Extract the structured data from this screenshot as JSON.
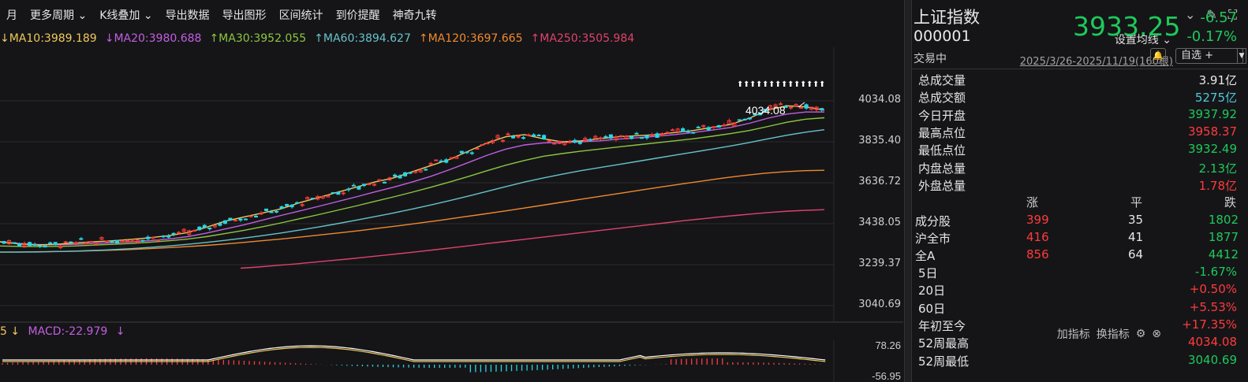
{
  "toolbar": {
    "items": [
      "月",
      "更多周期 ⌄",
      "K线叠加 ⌄",
      "导出数据",
      "导出图形",
      "区间统计",
      "到价提醒",
      "神奇九转"
    ]
  },
  "ma": {
    "ma10": {
      "label": "↓MA10:3989.189",
      "color": "#f0c95a"
    },
    "ma20": {
      "label": "↓MA20:3980.688",
      "color": "#c35fe0"
    },
    "ma30": {
      "label": "↑MA30:3952.055",
      "color": "#8ec63f"
    },
    "ma60": {
      "label": "↑MA60:3894.627",
      "color": "#66c3c9"
    },
    "ma120": {
      "label": "↑MA120:3697.665",
      "color": "#f08a2e"
    },
    "ma250": {
      "label": "↑MA250:3505.984",
      "color": "#e0426b"
    },
    "settings_label": "设置均线 ⌄"
  },
  "range_label": "2025/3/26-2025/11/19(160根)",
  "chart_data": {
    "type": "candlestick",
    "y_ticks": [
      "4034.08",
      "3835.40",
      "3636.72",
      "3438.05",
      "3239.37",
      "3040.69"
    ],
    "high_marker": "4034.08",
    "ma10_series": [
      3350,
      3340,
      3335,
      3338,
      3345,
      3350,
      3355,
      3362,
      3370,
      3380,
      3395,
      3420,
      3450,
      3470,
      3490,
      3510,
      3540,
      3565,
      3590,
      3615,
      3640,
      3660,
      3690,
      3720,
      3750,
      3790,
      3830,
      3860,
      3870,
      3850,
      3835,
      3840,
      3850,
      3860,
      3865,
      3870,
      3880,
      3890,
      3905,
      3920,
      3950,
      3990,
      4010,
      4005,
      3989
    ],
    "ma20_series": [
      3350,
      3342,
      3337,
      3336,
      3338,
      3342,
      3346,
      3350,
      3356,
      3364,
      3375,
      3392,
      3412,
      3432,
      3455,
      3478,
      3500,
      3522,
      3545,
      3568,
      3592,
      3615,
      3640,
      3668,
      3700,
      3735,
      3770,
      3800,
      3820,
      3830,
      3832,
      3835,
      3840,
      3848,
      3855,
      3862,
      3870,
      3880,
      3892,
      3905,
      3925,
      3950,
      3970,
      3980,
      3980
    ],
    "ma30_series": [
      3330,
      3328,
      3327,
      3328,
      3330,
      3334,
      3338,
      3342,
      3348,
      3355,
      3363,
      3375,
      3390,
      3405,
      3423,
      3442,
      3462,
      3482,
      3503,
      3524,
      3546,
      3568,
      3591,
      3615,
      3640,
      3667,
      3695,
      3722,
      3745,
      3765,
      3778,
      3790,
      3800,
      3810,
      3820,
      3830,
      3840,
      3850,
      3862,
      3875,
      3890,
      3910,
      3930,
      3945,
      3952
    ],
    "ma60_series": [
      3300,
      3300,
      3301,
      3303,
      3305,
      3308,
      3312,
      3317,
      3323,
      3330,
      3338,
      3347,
      3357,
      3368,
      3380,
      3393,
      3407,
      3422,
      3438,
      3455,
      3472,
      3490,
      3509,
      3529,
      3550,
      3572,
      3595,
      3618,
      3640,
      3660,
      3678,
      3695,
      3710,
      3725,
      3740,
      3755,
      3770,
      3785,
      3800,
      3815,
      3832,
      3850,
      3867,
      3882,
      3894
    ],
    "ma120_series": [
      3300,
      3301,
      3302,
      3303,
      3305,
      3308,
      3311,
      3315,
      3320,
      3325,
      3331,
      3338,
      3346,
      3355,
      3364,
      3374,
      3384,
      3395,
      3406,
      3418,
      3430,
      3443,
      3456,
      3470,
      3484,
      3498,
      3513,
      3528,
      3543,
      3558,
      3573,
      3588,
      3603,
      3618,
      3632,
      3646,
      3660,
      3672,
      3682,
      3690,
      3695,
      3697
    ],
    "ma250_series": [
      3222,
      3228,
      3235,
      3242,
      3250,
      3258,
      3266,
      3275,
      3284,
      3293,
      3302,
      3312,
      3322,
      3332,
      3342,
      3352,
      3362,
      3372,
      3382,
      3392,
      3402,
      3412,
      3422,
      3432,
      3442,
      3452,
      3461,
      3470,
      3478,
      3486,
      3493,
      3499,
      3503,
      3506
    ],
    "macd_ticks": [
      "78.26",
      "-56.95"
    ]
  },
  "macd": {
    "value_label": "MACD:-22.979",
    "prefix": "5 ↓",
    "suffix": "↓",
    "add_label": "加指标",
    "switch_label": "换指标"
  },
  "quote": {
    "name": "上证指数",
    "code": "000001",
    "status": "交易中",
    "price": "3933.25",
    "change": "-6.57",
    "change_pct": "-0.17%",
    "watch_label": "自选 +"
  },
  "stats": [
    {
      "label": "总成交量",
      "value": "3.91亿",
      "color": "#e6e6e6"
    },
    {
      "label": "总成交额",
      "value": "5275亿",
      "color": "#4ec9d8"
    },
    {
      "label": "今日开盘",
      "value": "3937.92",
      "color": "#1ec95a"
    },
    {
      "label": "最高点位",
      "value": "3958.37",
      "color": "#ff3b3b"
    },
    {
      "label": "最低点位",
      "value": "3932.49",
      "color": "#1ec95a"
    },
    {
      "label": "内盘总量",
      "value": "2.13亿",
      "color": "#1ec95a"
    },
    {
      "label": "外盘总量",
      "value": "1.78亿",
      "color": "#ff3b3b"
    }
  ],
  "breadth": {
    "headers": [
      "涨",
      "平",
      "跌"
    ],
    "rows": [
      {
        "label": "成分股",
        "up": "399",
        "flat": "35",
        "down": "1802"
      },
      {
        "label": "沪全市",
        "up": "416",
        "flat": "41",
        "down": "1877"
      },
      {
        "label": "全A",
        "up": "856",
        "flat": "64",
        "down": "4412"
      }
    ]
  },
  "performance": [
    {
      "label": "5日",
      "value": "-1.67%",
      "color": "#1ec95a"
    },
    {
      "label": "20日",
      "value": "+0.50%",
      "color": "#ff3b3b"
    },
    {
      "label": "60日",
      "value": "+5.53%",
      "color": "#ff3b3b"
    },
    {
      "label": "年初至今",
      "value": "+17.35%",
      "color": "#ff3b3b"
    },
    {
      "label": "52周最高",
      "value": "4034.08",
      "color": "#ff3b3b"
    },
    {
      "label": "52周最低",
      "value": "3040.69",
      "color": "#1ec95a"
    }
  ]
}
